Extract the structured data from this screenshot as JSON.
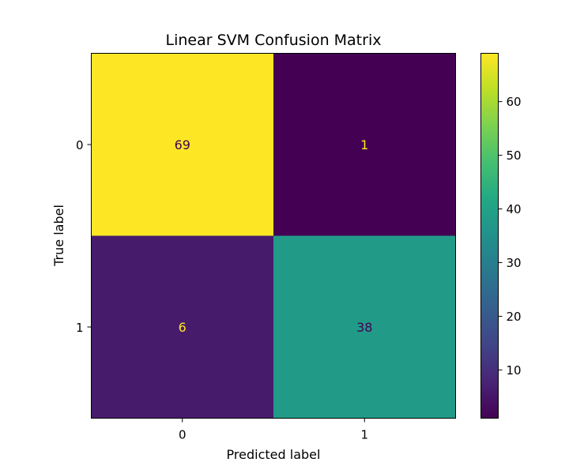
{
  "chart_data": {
    "type": "heatmap",
    "title": "Linear SVM Confusion Matrix",
    "xlabel": "Predicted label",
    "ylabel": "True label",
    "x_categories": [
      "0",
      "1"
    ],
    "y_categories": [
      "0",
      "1"
    ],
    "values": [
      [
        69,
        1
      ],
      [
        6,
        38
      ]
    ],
    "colormap": "viridis",
    "colorbar": {
      "range": [
        1,
        69
      ],
      "ticks": [
        10,
        20,
        30,
        40,
        50,
        60
      ]
    }
  }
}
